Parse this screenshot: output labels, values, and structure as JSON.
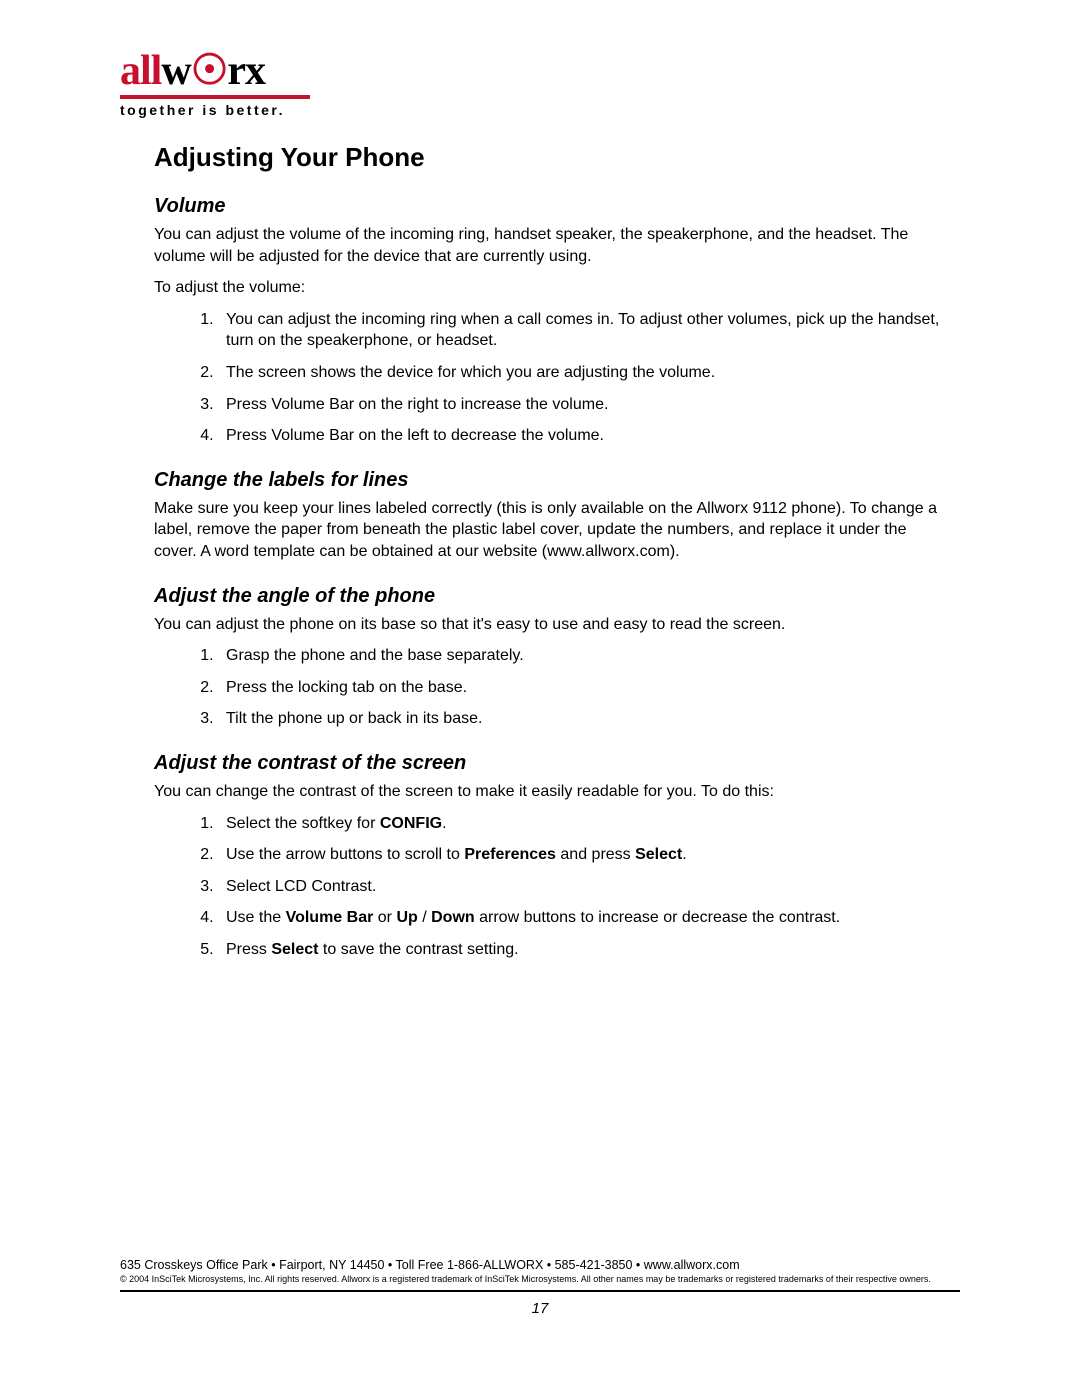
{
  "logo": {
    "brand_left": "all",
    "brand_mid": "w",
    "brand_right_o": "o",
    "brand_right": "rx",
    "tagline": "together is better."
  },
  "h1": "Adjusting Your Phone",
  "sections": {
    "volume": {
      "heading": "Volume",
      "p1": "You can adjust the volume of the incoming ring, handset speaker, the speakerphone, and the headset. The volume will be adjusted for the device that are currently using.",
      "p2": "To adjust the volume:",
      "items": [
        "You can adjust the incoming ring when a call comes in. To adjust other volumes, pick up the handset, turn on the speakerphone, or headset.",
        "The screen shows the device for which you are adjusting the volume.",
        "Press Volume Bar on the right to increase the volume.",
        "Press Volume Bar on the left to decrease the volume."
      ]
    },
    "labels": {
      "heading": "Change the labels for lines",
      "p1": "Make sure you keep your lines labeled correctly (this is only available on the Allworx 9112 phone). To change a label, remove the paper from beneath the plastic label cover, update the numbers, and replace it under the cover. A word template can be obtained at our website (www.allworx.com)."
    },
    "angle": {
      "heading": "Adjust the angle of the phone",
      "p1": "You can adjust the phone on its base so that it's easy to use and easy to read the screen.",
      "items": [
        "Grasp the phone and the base separately.",
        "Press the locking tab on the base.",
        "Tilt the phone up or back in its base."
      ]
    },
    "contrast": {
      "heading": "Adjust the contrast of the screen",
      "p1": "You can change the contrast of the screen to make it easily readable for you. To do this:",
      "item1_pre": "Select the softkey for ",
      "item1_b": "CONFIG",
      "item1_post": ".",
      "item2_pre": "Use the arrow buttons to scroll to ",
      "item2_b1": "Preferences",
      "item2_mid": " and press ",
      "item2_b2": "Select",
      "item2_post": ".",
      "item3": "Select LCD Contrast.",
      "item4_pre": "Use the ",
      "item4_b1": "Volume Bar",
      "item4_mid1": " or ",
      "item4_b2": "Up",
      "item4_mid2": " / ",
      "item4_b3": "Down",
      "item4_post": " arrow buttons to increase or decrease the contrast.",
      "item5_pre": "Press ",
      "item5_b": "Select",
      "item5_post": " to save the contrast setting."
    }
  },
  "footer": {
    "address": "635 Crosskeys Office Park • Fairport, NY 14450 • Toll Free 1-866-ALLWORX • 585-421-3850 • www.allworx.com",
    "legal": "© 2004 InSciTek Microsystems, Inc. All rights reserved. Allworx is a registered trademark of InSciTek Microsystems. All other names may be trademarks or registered trademarks of their respective owners.",
    "page_number": "17"
  }
}
